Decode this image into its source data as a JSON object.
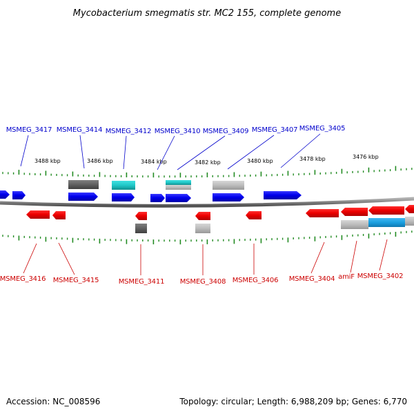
{
  "title": "Mycobacterium smegmatis str. MC2 155, complete genome",
  "footer": {
    "accession": "Accession: NC_008596",
    "summary": "Topology: circular; Length: 6,988,209 bp; Genes: 6,770"
  },
  "colors": {
    "forward_gene": "#0000ee",
    "reverse_gene": "#ee0000",
    "tick": "#228b22",
    "backbone": "#808080",
    "feature_dark": "#606060",
    "feature_cyan": "#20c8c8",
    "feature_light": "#b8b8b8",
    "feature_blue": "#1a9fe0"
  },
  "ruler": {
    "labels": [
      "3488 kbp",
      "3486 kbp",
      "3484 kbp",
      "3482 kbp",
      "3480 kbp",
      "3478 kbp",
      "3476 kbp"
    ]
  },
  "forward_genes": [
    "MSMEG_3417",
    "MSMEG_3414",
    "MSMEG_3412",
    "MSMEG_3410",
    "MSMEG_3409",
    "MSMEG_3407",
    "MSMEG_3405"
  ],
  "reverse_genes": [
    "MSMEG_3416",
    "MSMEG_3415",
    "MSMEG_3411",
    "MSMEG_3408",
    "MSMEG_3406",
    "MSMEG_3404",
    "amiF",
    "MSMEG_3402"
  ]
}
